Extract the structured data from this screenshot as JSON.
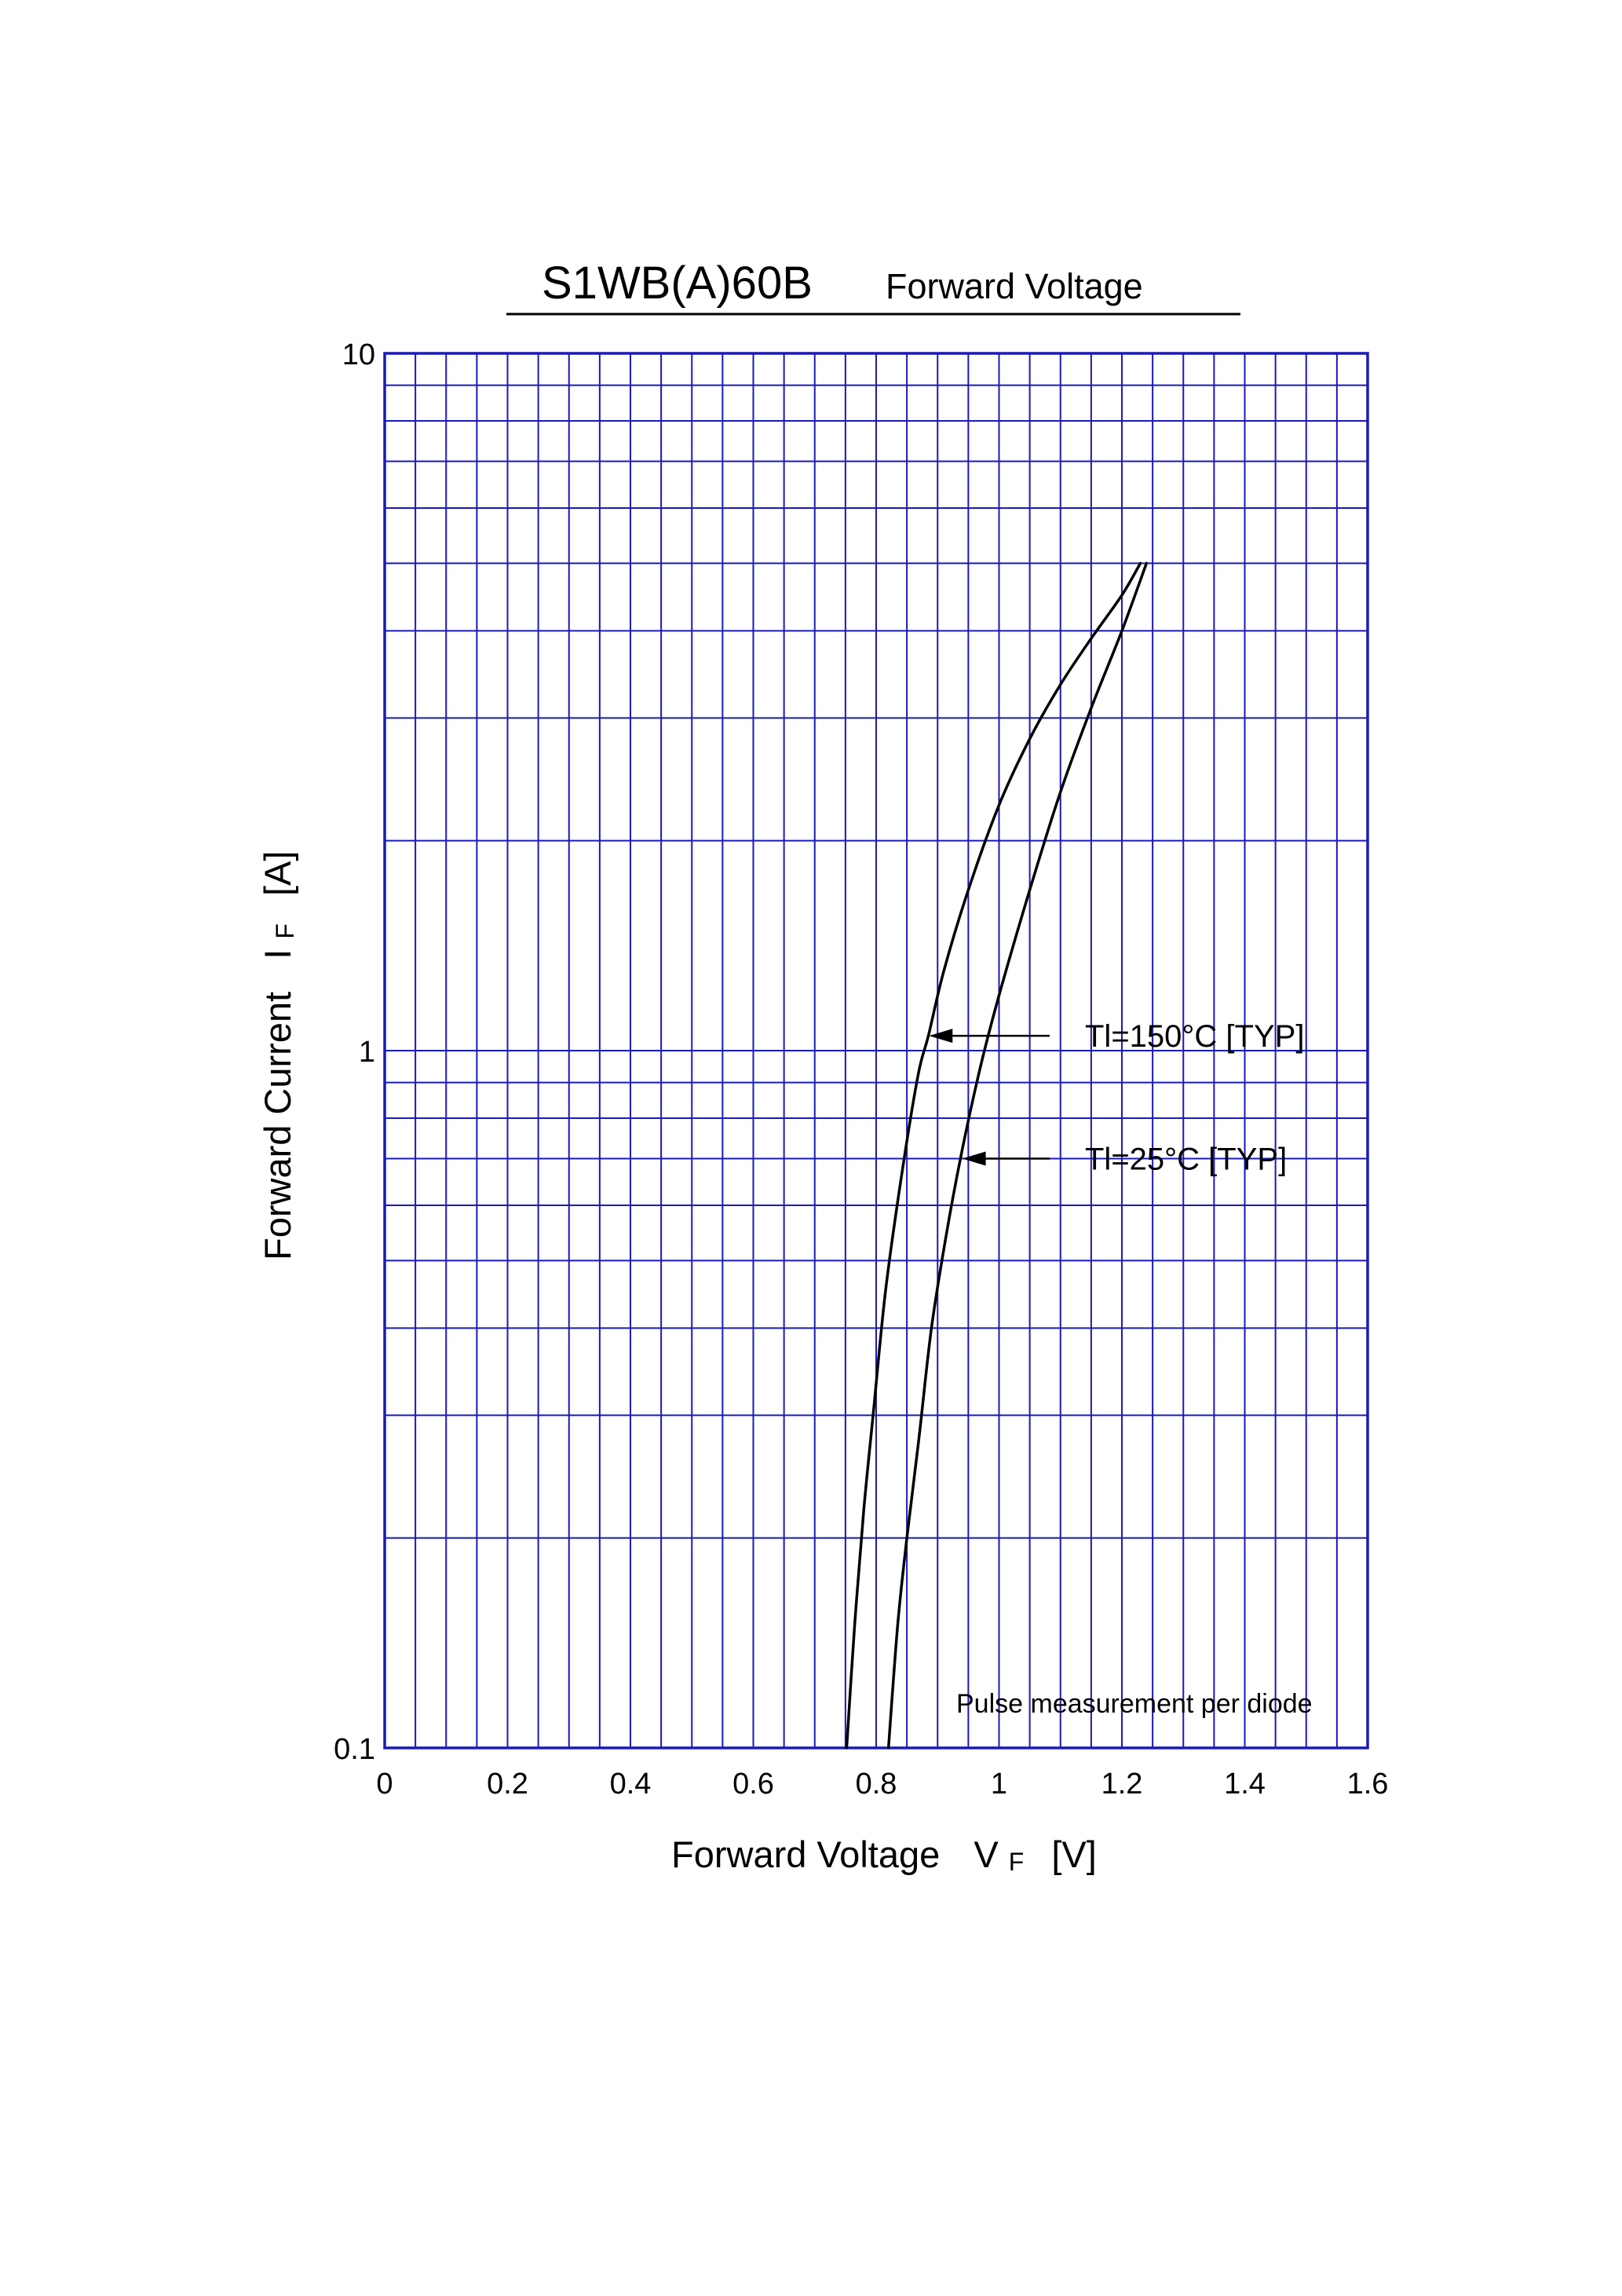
{
  "chart_data": {
    "type": "line",
    "title": "S1WB(A)60B",
    "subtitle": "Forward Voltage",
    "xlabel": "Forward Voltage",
    "xlabel_symbol": "V",
    "xlabel_sub": "F",
    "xlabel_unit": "[V]",
    "ylabel": "Forward Current",
    "ylabel_symbol": "I",
    "ylabel_sub": "F",
    "ylabel_unit": "[A]",
    "xlim": [
      0,
      1.6
    ],
    "ylim": [
      0.1,
      10
    ],
    "yscale": "log",
    "grid": true,
    "grid_color": "#1a1ab8",
    "curve_color": "#000000",
    "x_ticks": [
      "0",
      "0.2",
      "0.4",
      "0.6",
      "0.8",
      "1",
      "1.2",
      "1.4",
      "1.6"
    ],
    "x_tick_values": [
      0,
      0.2,
      0.4,
      0.6,
      0.8,
      1.0,
      1.2,
      1.4,
      1.6
    ],
    "y_ticks": [
      "0.1",
      "1",
      "10"
    ],
    "y_tick_values": [
      0.1,
      1,
      10
    ],
    "note": "Pulse measurement per diode",
    "series": [
      {
        "name": "Tl=150°C [TYP]",
        "points": [
          [
            0.752,
            0.1
          ],
          [
            0.765,
            0.15
          ],
          [
            0.78,
            0.22
          ],
          [
            0.795,
            0.3
          ],
          [
            0.815,
            0.45
          ],
          [
            0.84,
            0.65
          ],
          [
            0.868,
            0.92
          ],
          [
            0.885,
            1.05
          ],
          [
            0.91,
            1.3
          ],
          [
            0.95,
            1.7
          ],
          [
            1.0,
            2.25
          ],
          [
            1.05,
            2.8
          ],
          [
            1.1,
            3.35
          ],
          [
            1.15,
            3.9
          ],
          [
            1.2,
            4.5
          ],
          [
            1.23,
            5.0
          ]
        ],
        "annotation_at": [
          0.886,
          1.05
        ]
      },
      {
        "name": "Tl=25°C [TYP]",
        "points": [
          [
            0.82,
            0.1
          ],
          [
            0.835,
            0.15
          ],
          [
            0.85,
            0.2
          ],
          [
            0.87,
            0.28
          ],
          [
            0.89,
            0.4
          ],
          [
            0.915,
            0.55
          ],
          [
            0.94,
            0.72
          ],
          [
            0.97,
            0.95
          ],
          [
            1.0,
            1.2
          ],
          [
            1.05,
            1.7
          ],
          [
            1.1,
            2.35
          ],
          [
            1.15,
            3.1
          ],
          [
            1.2,
            4.0
          ],
          [
            1.24,
            5.0
          ]
        ],
        "annotation_at": [
          0.94,
          0.7
        ]
      }
    ]
  }
}
